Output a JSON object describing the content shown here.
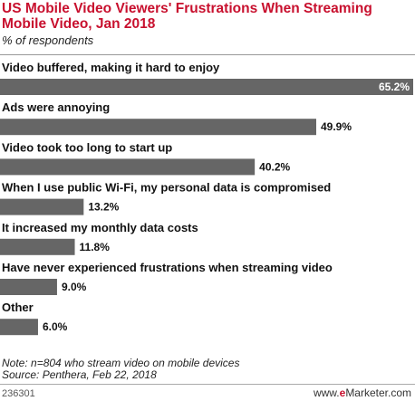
{
  "header": {
    "title": "US Mobile Video Viewers' Frustrations When Streaming Mobile Video, Jan 2018",
    "subtitle": "% of respondents"
  },
  "chart_data": {
    "type": "bar",
    "orientation": "horizontal",
    "categories": [
      "Video buffered, making it hard to enjoy",
      "Ads were annoying",
      "Video took too long to start up",
      "When I use public Wi-Fi, my personal data is compromised",
      "It increased my monthly data costs",
      "Have never experienced frustrations when streaming video",
      "Other"
    ],
    "values": [
      65.2,
      49.9,
      40.2,
      13.2,
      11.8,
      9.0,
      6.0
    ],
    "value_labels": [
      "65.2%",
      "49.9%",
      "40.2%",
      "13.2%",
      "11.8%",
      "9.0%",
      "6.0%"
    ],
    "title": "US Mobile Video Viewers' Frustrations When Streaming Mobile Video, Jan 2018",
    "subtitle": "% of respondents",
    "xlim": [
      0,
      65.2
    ],
    "grid": false,
    "bar_color": "#666666"
  },
  "footer": {
    "note": "Note: n=804 who stream video on mobile devices",
    "source": "Source: Penthera, Feb 22, 2018",
    "chart_id": "236301",
    "brand_prefix": "www.",
    "brand_e": "e",
    "brand_rest": "Marketer.com"
  },
  "colors": {
    "title": "#c8102e",
    "bar": "#666666",
    "brand_accent": "#c8102e"
  }
}
